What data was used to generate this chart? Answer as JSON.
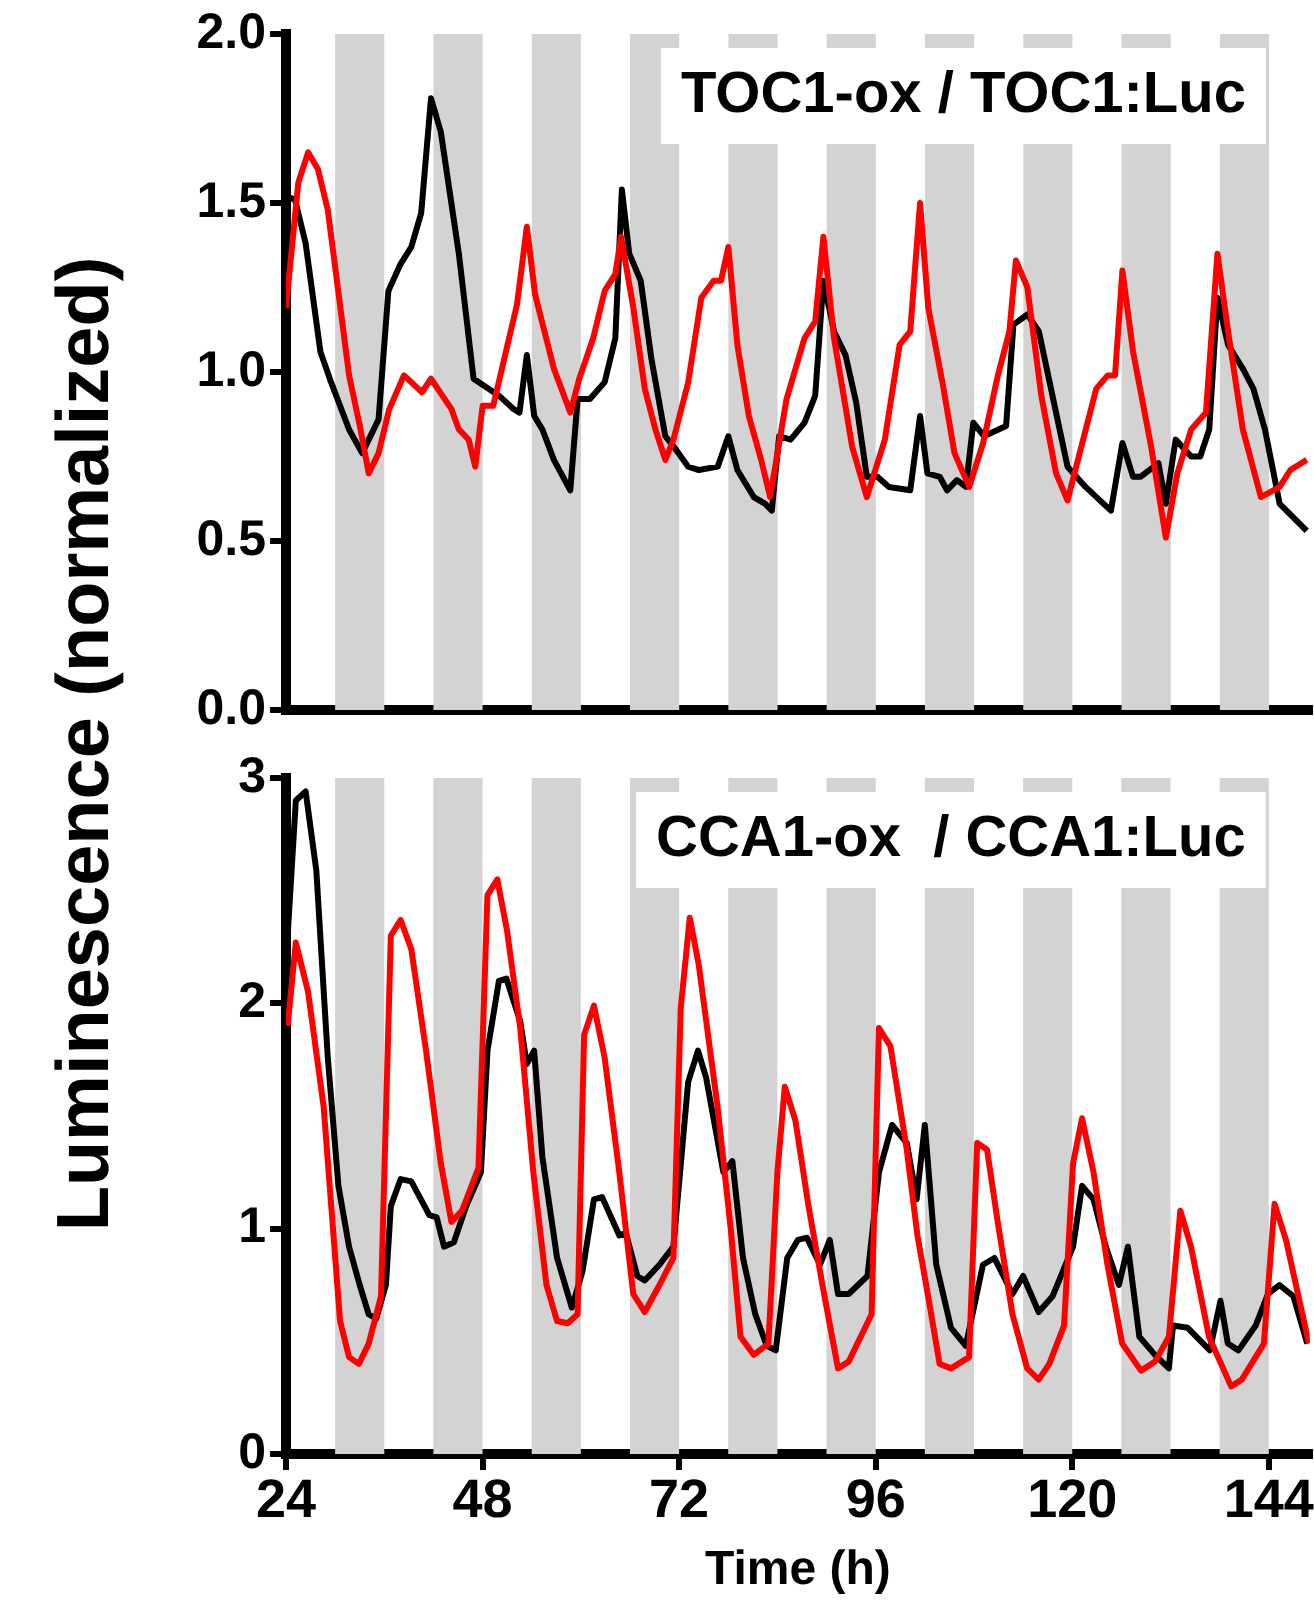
{
  "chart_data": [
    {
      "type": "line",
      "title": "TOC1-ox / TOC1:Luc",
      "ylabel": "Luminescence (normalized)",
      "xlim": [
        24,
        149
      ],
      "ylim": [
        0,
        2
      ],
      "yticks": [
        {
          "value": 0,
          "label": "0.0"
        },
        {
          "value": 0.5,
          "label": "0.5"
        },
        {
          "value": 1,
          "label": "1.0"
        },
        {
          "value": 1.5,
          "label": "1.5"
        },
        {
          "value": 2,
          "label": "2.0"
        }
      ],
      "tick_labels": "y",
      "marker": "none",
      "legend": false,
      "bands": [
        {
          "axis": "x",
          "from": 30,
          "to": 36,
          "color": "#d3d3d3"
        },
        {
          "axis": "x",
          "from": 42,
          "to": 48,
          "color": "#d3d3d3"
        },
        {
          "axis": "x",
          "from": 54,
          "to": 60,
          "color": "#d3d3d3"
        },
        {
          "axis": "x",
          "from": 66,
          "to": 72,
          "color": "#d3d3d3"
        },
        {
          "axis": "x",
          "from": 78,
          "to": 84,
          "color": "#d3d3d3"
        },
        {
          "axis": "x",
          "from": 90,
          "to": 96,
          "color": "#d3d3d3"
        },
        {
          "axis": "x",
          "from": 102,
          "to": 108,
          "color": "#d3d3d3"
        },
        {
          "axis": "x",
          "from": 114,
          "to": 120,
          "color": "#d3d3d3"
        },
        {
          "axis": "x",
          "from": 126,
          "to": 132,
          "color": "#d3d3d3"
        },
        {
          "axis": "x",
          "from": 138,
          "to": 144,
          "color": "#d3d3d3"
        }
      ],
      "series": [
        {
          "color": "#ff0000",
          "x": [
            24,
            25.5,
            26.7,
            27.9,
            29.1,
            31.7,
            33.1,
            34.1,
            35.3,
            36.6,
            38.4,
            40.6,
            41.7,
            44.2,
            45.1,
            46.3,
            47.1,
            48,
            49.3,
            52.2,
            53.4,
            54.4,
            56.7,
            58.7,
            59.8,
            61.5,
            62.9,
            64.2,
            64.9,
            66.4,
            67.8,
            69.1,
            70.3,
            71.3,
            73.1,
            74.7,
            76.2,
            77.1,
            78,
            79.1,
            80.5,
            82,
            83.1,
            85.1,
            87.3,
            88.6,
            89.6,
            90.9,
            93.1,
            94.9,
            97.1,
            98.9,
            100.2,
            101.4,
            102.4,
            104.2,
            105.6,
            107.4,
            109.1,
            110.9,
            112.3,
            113.1,
            114.5,
            116.2,
            118,
            119.4,
            121.2,
            122.9,
            124.3,
            125.2,
            126.1,
            127.4,
            129.6,
            131.4,
            132.8,
            134.5,
            136.3,
            137.7,
            139,
            140.8,
            143,
            145.3,
            146.6,
            148.6
          ],
          "values": [
            1.19,
            1.56,
            1.65,
            1.6,
            1.48,
            0.99,
            0.83,
            0.7,
            0.76,
            0.89,
            0.99,
            0.94,
            0.98,
            0.89,
            0.83,
            0.8,
            0.72,
            0.9,
            0.9,
            1.2,
            1.43,
            1.23,
            1.01,
            0.88,
            0.98,
            1.1,
            1.24,
            1.29,
            1.4,
            1.19,
            0.95,
            0.83,
            0.74,
            0.8,
            0.97,
            1.22,
            1.27,
            1.27,
            1.37,
            1.08,
            0.87,
            0.74,
            0.63,
            0.92,
            1.1,
            1.15,
            1.4,
            1.1,
            0.78,
            0.63,
            0.8,
            1.08,
            1.12,
            1.5,
            1.19,
            0.96,
            0.76,
            0.66,
            0.79,
            0.99,
            1.12,
            1.33,
            1.25,
            0.93,
            0.7,
            0.62,
            0.79,
            0.95,
            0.99,
            0.99,
            1.3,
            1.06,
            0.78,
            0.51,
            0.7,
            0.83,
            0.88,
            1.35,
            1.12,
            0.83,
            0.63,
            0.66,
            0.71,
            0.74
          ]
        },
        {
          "color": "#000000",
          "x": [
            24,
            25.1,
            26.4,
            28.2,
            29.5,
            31.7,
            33.3,
            35.3,
            36.5,
            38,
            39.3,
            40.5,
            41.7,
            42.9,
            45.1,
            46.9,
            50,
            51.8,
            52.5,
            53.4,
            54.3,
            55.3,
            56.7,
            58.7,
            59.6,
            61.1,
            62.9,
            64.2,
            65,
            65.9,
            67.3,
            68.6,
            70.3,
            71.3,
            73.1,
            74.4,
            76.7,
            78,
            79.1,
            81.1,
            82.5,
            83.3,
            84.2,
            85.6,
            87.3,
            88.6,
            89.6,
            90.9,
            92.3,
            93.6,
            94.9,
            96.2,
            97.6,
            100.2,
            101.4,
            102.3,
            103.8,
            104.7,
            105.9,
            107,
            107.9,
            109.2,
            111.9,
            112.8,
            114.5,
            115.9,
            119.4,
            121.6,
            124.7,
            126.1,
            127.4,
            128.3,
            130.5,
            131.4,
            132.6,
            134.5,
            135.6,
            136.7,
            137.7,
            139,
            140.8,
            142.1,
            143.5,
            145.3,
            148.6
          ],
          "values": [
            1.52,
            1.51,
            1.38,
            1.06,
            0.97,
            0.83,
            0.76,
            0.86,
            1.24,
            1.32,
            1.37,
            1.47,
            1.81,
            1.71,
            1.35,
            0.98,
            0.93,
            0.89,
            0.88,
            1.05,
            0.87,
            0.83,
            0.74,
            0.65,
            0.92,
            0.92,
            0.97,
            1.1,
            1.54,
            1.35,
            1.27,
            1.04,
            0.81,
            0.78,
            0.72,
            0.71,
            0.72,
            0.81,
            0.71,
            0.63,
            0.61,
            0.59,
            0.81,
            0.8,
            0.85,
            0.93,
            1.27,
            1.12,
            1.05,
            0.91,
            0.69,
            0.69,
            0.66,
            0.65,
            0.87,
            0.7,
            0.69,
            0.65,
            0.68,
            0.66,
            0.85,
            0.81,
            0.84,
            1.14,
            1.17,
            1.12,
            0.72,
            0.66,
            0.59,
            0.79,
            0.69,
            0.69,
            0.73,
            0.61,
            0.8,
            0.75,
            0.75,
            0.83,
            1.22,
            1.08,
            1.01,
            0.95,
            0.83,
            0.61,
            0.53
          ]
        }
      ]
    },
    {
      "type": "line",
      "title": "CCA1-ox  / CCA1:Luc",
      "xlabel": "Time (h)",
      "xlim": [
        24,
        149
      ],
      "xticks": [
        24,
        48,
        72,
        96,
        120,
        144
      ],
      "ylim": [
        0,
        3
      ],
      "yticks": [
        0,
        1,
        2,
        3
      ],
      "marker": "none",
      "legend": false,
      "bands": [
        {
          "axis": "x",
          "from": 30,
          "to": 36,
          "color": "#d3d3d3"
        },
        {
          "axis": "x",
          "from": 42,
          "to": 48,
          "color": "#d3d3d3"
        },
        {
          "axis": "x",
          "from": 54,
          "to": 60,
          "color": "#d3d3d3"
        },
        {
          "axis": "x",
          "from": 66,
          "to": 72,
          "color": "#d3d3d3"
        },
        {
          "axis": "x",
          "from": 78,
          "to": 84,
          "color": "#d3d3d3"
        },
        {
          "axis": "x",
          "from": 90,
          "to": 96,
          "color": "#d3d3d3"
        },
        {
          "axis": "x",
          "from": 102,
          "to": 108,
          "color": "#d3d3d3"
        },
        {
          "axis": "x",
          "from": 114,
          "to": 120,
          "color": "#d3d3d3"
        },
        {
          "axis": "x",
          "from": 126,
          "to": 132,
          "color": "#d3d3d3"
        },
        {
          "axis": "x",
          "from": 138,
          "to": 144,
          "color": "#d3d3d3"
        }
      ],
      "series": [
        {
          "color": "#ff0000",
          "x": [
            24.2,
            25.2,
            26.7,
            28.6,
            30.6,
            31.7,
            32.9,
            34.1,
            35.6,
            36.8,
            38,
            39.3,
            41.1,
            42.9,
            44.2,
            45.5,
            47.5,
            48.6,
            49.8,
            51,
            52.6,
            54.2,
            55.8,
            57.1,
            58.4,
            59.6,
            60.4,
            61.6,
            62.9,
            64.7,
            66.4,
            67.8,
            69.6,
            71.3,
            72.2,
            73.3,
            74.4,
            76.7,
            78.3,
            79.5,
            81.1,
            82.9,
            84,
            84.9,
            86.2,
            87.8,
            89.6,
            91.4,
            92.7,
            95.5,
            96.4,
            97.8,
            99.8,
            101.1,
            102.5,
            103.8,
            105.2,
            107.4,
            108.4,
            109.6,
            110.9,
            112.7,
            114.5,
            115.9,
            117.2,
            119,
            120.1,
            121.2,
            122.6,
            124.3,
            126.1,
            128.4,
            130.1,
            131.8,
            133.2,
            134.5,
            136.7,
            139.4,
            140.7,
            143.4,
            144.7,
            146.1,
            148.9
          ],
          "values": [
            1.9,
            2.27,
            2.05,
            1.54,
            0.59,
            0.43,
            0.4,
            0.49,
            0.7,
            2.3,
            2.37,
            2.24,
            1.79,
            1.29,
            1.03,
            1.08,
            1.27,
            2.48,
            2.55,
            2.32,
            1.89,
            1.25,
            0.75,
            0.59,
            0.58,
            0.62,
            1.86,
            1.99,
            1.76,
            1.25,
            0.71,
            0.63,
            0.75,
            0.87,
            1.98,
            2.38,
            2.17,
            1.54,
            1,
            0.52,
            0.44,
            0.49,
            1.25,
            1.63,
            1.48,
            1.1,
            0.73,
            0.38,
            0.41,
            0.62,
            1.89,
            1.81,
            1.35,
            0.97,
            0.68,
            0.4,
            0.38,
            0.43,
            1.38,
            1.35,
            1.03,
            0.62,
            0.38,
            0.33,
            0.4,
            0.57,
            1.29,
            1.49,
            1.25,
            0.84,
            0.49,
            0.37,
            0.41,
            0.52,
            1.08,
            0.92,
            0.52,
            0.3,
            0.33,
            0.49,
            1.11,
            0.95,
            0.49
          ]
        },
        {
          "color": "#000000",
          "x": [
            24.2,
            25.2,
            26.4,
            27.7,
            29.1,
            30.4,
            31.7,
            33,
            34.1,
            35,
            36.2,
            36.8,
            38,
            39.3,
            41.5,
            42.4,
            43.3,
            44.5,
            46,
            47.8,
            48.6,
            50,
            50.9,
            52.6,
            53.4,
            54.3,
            55.3,
            57.1,
            58.9,
            60.2,
            61.6,
            62.6,
            64.7,
            65.5,
            66.9,
            67.8,
            69.6,
            71.3,
            73.1,
            74.3,
            75.3,
            77.4,
            78.5,
            79.8,
            81.3,
            82.7,
            83.8,
            85.2,
            86.5,
            87.6,
            89.2,
            90.4,
            91.4,
            92.7,
            95,
            96.4,
            98,
            99.8,
            101,
            102,
            103.4,
            105.2,
            107,
            109.1,
            110.5,
            112.7,
            114,
            115.9,
            117.6,
            120.1,
            121.2,
            122.6,
            124.1,
            125.7,
            126.8,
            128.2,
            130.1,
            131.8,
            132.3,
            134.1,
            136.8,
            138.1,
            139,
            140.3,
            142.4,
            143.9,
            145.3,
            147,
            148.7
          ],
          "values": [
            2.3,
            2.9,
            2.94,
            2.59,
            1.76,
            1.19,
            0.92,
            0.75,
            0.62,
            0.6,
            0.75,
            1.1,
            1.22,
            1.21,
            1.06,
            1.05,
            0.92,
            0.94,
            1.1,
            1.25,
            1.79,
            2.1,
            2.11,
            1.92,
            1.73,
            1.79,
            1.32,
            0.87,
            0.65,
            0.81,
            1.13,
            1.14,
            0.97,
            0.98,
            0.79,
            0.77,
            0.84,
            0.92,
            1.65,
            1.79,
            1.67,
            1.25,
            1.3,
            0.87,
            0.62,
            0.48,
            0.46,
            0.87,
            0.95,
            0.96,
            0.84,
            0.95,
            0.71,
            0.71,
            0.79,
            1.25,
            1.46,
            1.38,
            1.13,
            1.46,
            0.84,
            0.56,
            0.48,
            0.84,
            0.87,
            0.71,
            0.79,
            0.63,
            0.7,
            0.92,
            1.19,
            1.13,
            0.92,
            0.75,
            0.92,
            0.52,
            0.44,
            0.38,
            0.57,
            0.56,
            0.46,
            0.68,
            0.49,
            0.46,
            0.57,
            0.71,
            0.75,
            0.7,
            0.49
          ]
        }
      ]
    }
  ]
}
